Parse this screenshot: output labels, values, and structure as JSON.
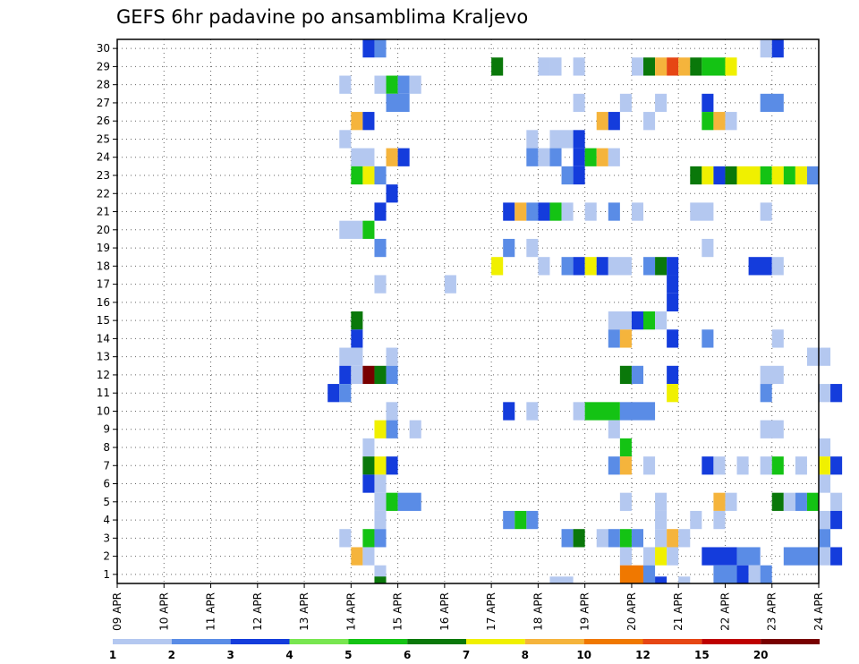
{
  "chart_data": {
    "type": "heatmap",
    "title": "GEFS 6hr padavine po ansamblima Kraljevo",
    "xlabel": "",
    "ylabel": "",
    "x_tick_labels": [
      "09 APR",
      "10 APR",
      "11 APR",
      "12 APR",
      "13 APR",
      "14 APR",
      "15 APR",
      "16 APR",
      "17 APR",
      "18 APR",
      "19 APR",
      "20 APR",
      "21 APR",
      "22 APR",
      "23 APR",
      "24 APR"
    ],
    "y_tick_labels": [
      1,
      2,
      3,
      4,
      5,
      6,
      7,
      8,
      9,
      10,
      11,
      12,
      13,
      14,
      15,
      16,
      17,
      18,
      19,
      20,
      21,
      22,
      23,
      24,
      25,
      26,
      27,
      28,
      29,
      30
    ],
    "x_time_step_hours": 6,
    "y_range": [
      0.5,
      30.5
    ],
    "grid": true,
    "legend_placement": "bottom",
    "legend": {
      "labels": [
        "1",
        "2",
        "3",
        "4",
        "5",
        "6",
        "7",
        "8",
        "10",
        "12",
        "15",
        "20"
      ],
      "colors": [
        "#b4c8f0",
        "#5a8ce6",
        "#143cdc",
        "#78e650",
        "#14c314",
        "#0a780a",
        "#f0f000",
        "#f5b43c",
        "#f07800",
        "#e64614",
        "#be0000",
        "#780000"
      ]
    },
    "color_scale_mm": [
      {
        "from": 1,
        "to": 2,
        "color": "#b4c8f0"
      },
      {
        "from": 2,
        "to": 3,
        "color": "#5a8ce6"
      },
      {
        "from": 3,
        "to": 4,
        "color": "#143cdc"
      },
      {
        "from": 4,
        "to": 5,
        "color": "#78e650"
      },
      {
        "from": 5,
        "to": 6,
        "color": "#14c314"
      },
      {
        "from": 6,
        "to": 7,
        "color": "#0a780a"
      },
      {
        "from": 7,
        "to": 8,
        "color": "#f0f000"
      },
      {
        "from": 8,
        "to": 10,
        "color": "#f5b43c"
      },
      {
        "from": 10,
        "to": 12,
        "color": "#f07800"
      },
      {
        "from": 12,
        "to": 15,
        "color": "#e64614"
      },
      {
        "from": 15,
        "to": 20,
        "color": "#be0000"
      },
      {
        "from": 20,
        "to": 25,
        "color": "#780000"
      }
    ],
    "cells_note": "Each row: [member, start_x_index, end_x_index, precipitation_mm]; x index counts 6-hour steps from 09 APR 00Z; a row fills steps start..end",
    "cells": [
      [
        30,
        21,
        21,
        3
      ],
      [
        30,
        22,
        22,
        2
      ],
      [
        30,
        55,
        55,
        1
      ],
      [
        30,
        56,
        56,
        3
      ],
      [
        29,
        32,
        32,
        6
      ],
      [
        29,
        36,
        36,
        1
      ],
      [
        29,
        37,
        37,
        1
      ],
      [
        29,
        39,
        39,
        1
      ],
      [
        29,
        44,
        44,
        1
      ],
      [
        29,
        45,
        45,
        6
      ],
      [
        29,
        46,
        46,
        8
      ],
      [
        29,
        47,
        47,
        12
      ],
      [
        29,
        48,
        48,
        8
      ],
      [
        29,
        49,
        49,
        6
      ],
      [
        29,
        50,
        51,
        5
      ],
      [
        29,
        52,
        52,
        7
      ],
      [
        28,
        19,
        19,
        1
      ],
      [
        28,
        22,
        22,
        1
      ],
      [
        28,
        23,
        23,
        5
      ],
      [
        28,
        24,
        24,
        2
      ],
      [
        28,
        25,
        25,
        1
      ],
      [
        27,
        23,
        24,
        2
      ],
      [
        27,
        39,
        39,
        1
      ],
      [
        27,
        43,
        43,
        1
      ],
      [
        27,
        46,
        46,
        1
      ],
      [
        27,
        50,
        50,
        3
      ],
      [
        27,
        55,
        56,
        2
      ],
      [
        26,
        20,
        20,
        8
      ],
      [
        26,
        21,
        21,
        3
      ],
      [
        26,
        41,
        41,
        8
      ],
      [
        26,
        42,
        42,
        3
      ],
      [
        26,
        45,
        45,
        1
      ],
      [
        26,
        50,
        50,
        5
      ],
      [
        26,
        51,
        51,
        8
      ],
      [
        26,
        52,
        52,
        1
      ],
      [
        25,
        19,
        19,
        1
      ],
      [
        25,
        35,
        35,
        1
      ],
      [
        25,
        37,
        38,
        1
      ],
      [
        25,
        39,
        39,
        3
      ],
      [
        24,
        20,
        21,
        1
      ],
      [
        24,
        23,
        23,
        8
      ],
      [
        24,
        24,
        24,
        3
      ],
      [
        24,
        35,
        35,
        2
      ],
      [
        24,
        36,
        36,
        1
      ],
      [
        24,
        37,
        37,
        2
      ],
      [
        24,
        39,
        39,
        3
      ],
      [
        24,
        40,
        40,
        5
      ],
      [
        24,
        41,
        41,
        8
      ],
      [
        24,
        42,
        42,
        1
      ],
      [
        23,
        20,
        20,
        5
      ],
      [
        23,
        21,
        21,
        7
      ],
      [
        23,
        22,
        22,
        2
      ],
      [
        23,
        38,
        38,
        2
      ],
      [
        23,
        39,
        39,
        3
      ],
      [
        23,
        49,
        49,
        6
      ],
      [
        23,
        50,
        50,
        7
      ],
      [
        23,
        51,
        51,
        3
      ],
      [
        23,
        52,
        52,
        6
      ],
      [
        23,
        53,
        54,
        7
      ],
      [
        23,
        55,
        55,
        5
      ],
      [
        23,
        56,
        56,
        7
      ],
      [
        23,
        57,
        57,
        5
      ],
      [
        23,
        58,
        58,
        7
      ],
      [
        23,
        59,
        59,
        2
      ],
      [
        22,
        23,
        23,
        3
      ],
      [
        21,
        22,
        22,
        3
      ],
      [
        21,
        33,
        33,
        3
      ],
      [
        21,
        34,
        34,
        8
      ],
      [
        21,
        35,
        35,
        2
      ],
      [
        21,
        36,
        36,
        3
      ],
      [
        21,
        37,
        37,
        5
      ],
      [
        21,
        38,
        38,
        1
      ],
      [
        21,
        40,
        40,
        1
      ],
      [
        21,
        42,
        42,
        2
      ],
      [
        21,
        44,
        44,
        1
      ],
      [
        21,
        49,
        50,
        1
      ],
      [
        21,
        55,
        55,
        1
      ],
      [
        20,
        19,
        20,
        1
      ],
      [
        20,
        21,
        21,
        5
      ],
      [
        19,
        22,
        22,
        2
      ],
      [
        19,
        33,
        33,
        2
      ],
      [
        19,
        35,
        35,
        1
      ],
      [
        19,
        50,
        50,
        1
      ],
      [
        18,
        32,
        32,
        7
      ],
      [
        18,
        36,
        36,
        1
      ],
      [
        18,
        38,
        38,
        2
      ],
      [
        18,
        39,
        39,
        3
      ],
      [
        18,
        40,
        40,
        7
      ],
      [
        18,
        41,
        41,
        3
      ],
      [
        18,
        42,
        43,
        1
      ],
      [
        18,
        45,
        45,
        2
      ],
      [
        18,
        46,
        46,
        6
      ],
      [
        18,
        47,
        47,
        3
      ],
      [
        18,
        54,
        55,
        3
      ],
      [
        18,
        56,
        56,
        1
      ],
      [
        17,
        22,
        22,
        1
      ],
      [
        17,
        28,
        28,
        1
      ],
      [
        17,
        47,
        47,
        3
      ],
      [
        16,
        47,
        47,
        3
      ],
      [
        15,
        20,
        20,
        6
      ],
      [
        15,
        42,
        43,
        1
      ],
      [
        15,
        44,
        44,
        3
      ],
      [
        15,
        45,
        45,
        5
      ],
      [
        15,
        46,
        46,
        1
      ],
      [
        14,
        20,
        20,
        3
      ],
      [
        14,
        42,
        42,
        2
      ],
      [
        14,
        43,
        43,
        8
      ],
      [
        14,
        47,
        47,
        3
      ],
      [
        14,
        50,
        50,
        2
      ],
      [
        14,
        56,
        56,
        1
      ],
      [
        13,
        19,
        20,
        1
      ],
      [
        13,
        23,
        23,
        1
      ],
      [
        13,
        59,
        60,
        1
      ],
      [
        12,
        19,
        19,
        3
      ],
      [
        12,
        20,
        20,
        1
      ],
      [
        12,
        21,
        21,
        20
      ],
      [
        12,
        22,
        22,
        6
      ],
      [
        12,
        23,
        23,
        2
      ],
      [
        12,
        43,
        43,
        6
      ],
      [
        12,
        44,
        44,
        2
      ],
      [
        12,
        47,
        47,
        3
      ],
      [
        12,
        55,
        56,
        1
      ],
      [
        11,
        18,
        18,
        3
      ],
      [
        11,
        19,
        19,
        2
      ],
      [
        11,
        47,
        47,
        7
      ],
      [
        11,
        55,
        55,
        2
      ],
      [
        11,
        60,
        60,
        1
      ],
      [
        11,
        61,
        61,
        3
      ],
      [
        10,
        23,
        23,
        1
      ],
      [
        10,
        33,
        33,
        3
      ],
      [
        10,
        35,
        35,
        1
      ],
      [
        10,
        39,
        39,
        1
      ],
      [
        10,
        40,
        42,
        5
      ],
      [
        10,
        43,
        45,
        2
      ],
      [
        9,
        22,
        22,
        7
      ],
      [
        9,
        23,
        23,
        2
      ],
      [
        9,
        25,
        25,
        1
      ],
      [
        9,
        42,
        42,
        1
      ],
      [
        9,
        55,
        56,
        1
      ],
      [
        8,
        21,
        21,
        1
      ],
      [
        8,
        43,
        43,
        5
      ],
      [
        8,
        60,
        60,
        1
      ],
      [
        7,
        21,
        21,
        6
      ],
      [
        7,
        22,
        22,
        7
      ],
      [
        7,
        23,
        23,
        3
      ],
      [
        7,
        42,
        42,
        2
      ],
      [
        7,
        43,
        43,
        8
      ],
      [
        7,
        45,
        45,
        1
      ],
      [
        7,
        50,
        50,
        3
      ],
      [
        7,
        51,
        51,
        1
      ],
      [
        7,
        53,
        53,
        1
      ],
      [
        7,
        55,
        55,
        1
      ],
      [
        7,
        56,
        56,
        5
      ],
      [
        7,
        58,
        58,
        1
      ],
      [
        7,
        60,
        60,
        7
      ],
      [
        7,
        61,
        61,
        3
      ],
      [
        6,
        21,
        21,
        3
      ],
      [
        6,
        22,
        22,
        1
      ],
      [
        6,
        60,
        60,
        1
      ],
      [
        5,
        22,
        22,
        1
      ],
      [
        5,
        23,
        23,
        5
      ],
      [
        5,
        24,
        25,
        2
      ],
      [
        5,
        43,
        43,
        1
      ],
      [
        5,
        46,
        46,
        1
      ],
      [
        5,
        51,
        51,
        8
      ],
      [
        5,
        52,
        52,
        1
      ],
      [
        5,
        56,
        56,
        6
      ],
      [
        5,
        57,
        57,
        1
      ],
      [
        5,
        58,
        58,
        2
      ],
      [
        5,
        59,
        59,
        5
      ],
      [
        5,
        61,
        61,
        1
      ],
      [
        4,
        22,
        22,
        1
      ],
      [
        4,
        33,
        33,
        2
      ],
      [
        4,
        34,
        34,
        5
      ],
      [
        4,
        35,
        35,
        2
      ],
      [
        4,
        46,
        46,
        1
      ],
      [
        4,
        49,
        49,
        1
      ],
      [
        4,
        51,
        51,
        1
      ],
      [
        4,
        60,
        60,
        1
      ],
      [
        4,
        61,
        61,
        3
      ],
      [
        3,
        19,
        19,
        1
      ],
      [
        3,
        21,
        21,
        5
      ],
      [
        3,
        22,
        22,
        2
      ],
      [
        3,
        38,
        38,
        2
      ],
      [
        3,
        39,
        39,
        6
      ],
      [
        3,
        41,
        41,
        1
      ],
      [
        3,
        42,
        42,
        2
      ],
      [
        3,
        43,
        43,
        5
      ],
      [
        3,
        44,
        44,
        2
      ],
      [
        3,
        46,
        46,
        1
      ],
      [
        3,
        47,
        47,
        8
      ],
      [
        3,
        48,
        48,
        1
      ],
      [
        3,
        60,
        60,
        2
      ],
      [
        2,
        20,
        20,
        8
      ],
      [
        2,
        21,
        21,
        1
      ],
      [
        2,
        43,
        43,
        1
      ],
      [
        2,
        45,
        45,
        1
      ],
      [
        2,
        46,
        46,
        7
      ],
      [
        2,
        47,
        47,
        1
      ],
      [
        2,
        50,
        52,
        3
      ],
      [
        2,
        53,
        54,
        2
      ],
      [
        2,
        57,
        59,
        2
      ],
      [
        2,
        60,
        60,
        1
      ],
      [
        2,
        61,
        61,
        3
      ],
      [
        1,
        22,
        22,
        1
      ],
      [
        1,
        43,
        44,
        10
      ],
      [
        1,
        45,
        45,
        2
      ],
      [
        1,
        51,
        52,
        2
      ],
      [
        1,
        53,
        53,
        3
      ],
      [
        1,
        54,
        54,
        1
      ],
      [
        1,
        55,
        55,
        2
      ]
    ],
    "below_axis_cells_note": "partial blocks under row 1: [start_x_index, end_x_index, precipitation_mm]",
    "below_axis_cells": [
      [
        22,
        22,
        6
      ],
      [
        37,
        38,
        1
      ],
      [
        46,
        46,
        3
      ],
      [
        48,
        48,
        1
      ]
    ]
  }
}
